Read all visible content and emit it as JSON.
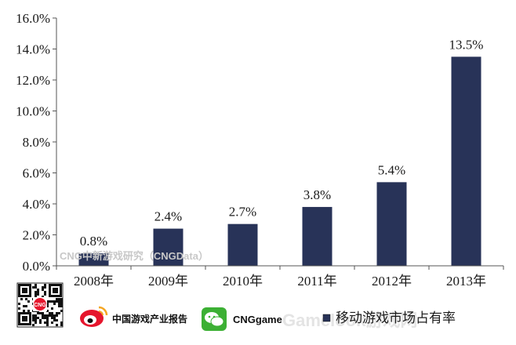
{
  "chart_data": {
    "type": "bar",
    "title": "",
    "xlabel": "",
    "ylabel": "",
    "categories": [
      "2008年",
      "2009年",
      "2010年",
      "2011年",
      "2012年",
      "2013年"
    ],
    "values": [
      0.8,
      2.4,
      2.7,
      3.8,
      5.4,
      13.5
    ],
    "value_labels": [
      "0.8%",
      "2.4%",
      "2.7%",
      "3.8%",
      "5.4%",
      "13.5%"
    ],
    "ylim": [
      0,
      16
    ],
    "yticks": [
      0,
      2,
      4,
      6,
      8,
      10,
      12,
      14,
      16
    ],
    "ytick_labels": [
      "0.0%",
      "2.0%",
      "4.0%",
      "6.0%",
      "8.0%",
      "10.0%",
      "12.0%",
      "14.0%",
      "16.0%"
    ],
    "series": [
      {
        "name": "移动游戏市场占有率",
        "values": [
          0.8,
          2.4,
          2.7,
          3.8,
          5.4,
          13.5
        ]
      }
    ],
    "grid": false,
    "legend_position": "bottom-right",
    "bar_color": "#283358"
  },
  "watermark": "CNG中新游戏研究（CNGData）",
  "footer": {
    "weibo_label": "中国游戏产业报告",
    "wechat_label": "CNGgame",
    "qr_badge": "CNG",
    "corner_watermark": "Gamelook游戏网"
  },
  "colors": {
    "bar": "#283358",
    "axis": "#555555",
    "weibo": "#e6162d",
    "wechat": "#3cb034"
  }
}
